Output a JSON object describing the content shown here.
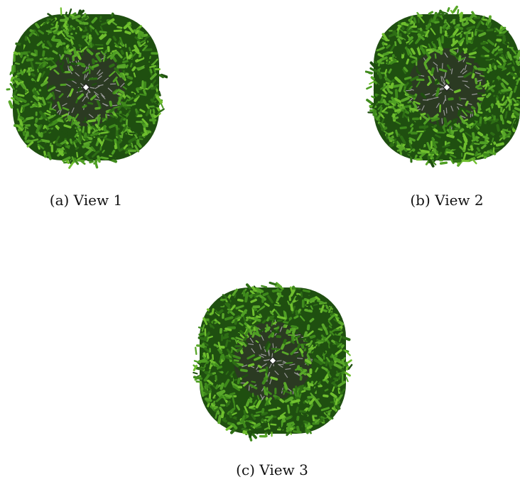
{
  "figure": {
    "panels": [
      {
        "caption": "(a) View 1"
      },
      {
        "caption": "(b) View 2"
      },
      {
        "caption": "(c) View 3"
      }
    ]
  },
  "colors": {
    "background": "#ffffff",
    "foliage_dark": "#1f4f10",
    "foliage_mid": "#3f8a1c",
    "foliage_light": "#6fbf2e",
    "core_gray": "#9a9a9a",
    "center_marker": "#ffffff"
  }
}
